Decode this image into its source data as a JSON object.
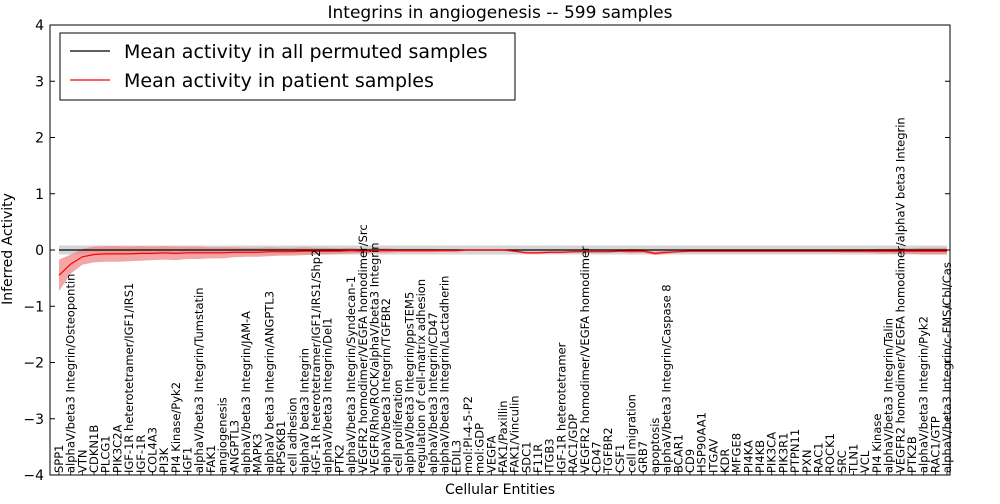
{
  "chart_data": {
    "type": "line",
    "title": "Integrins in angiogenesis -- 599 samples",
    "xlabel": "Cellular Entities",
    "ylabel": "Inferred Activity",
    "ylim": [
      -4,
      4
    ],
    "yticks": [
      -4,
      -3,
      -2,
      -1,
      0,
      1,
      2,
      3,
      4
    ],
    "legend_position": "top-left",
    "colors": {
      "permuted_line": "#000000",
      "patient_line": "#ff0000",
      "permuted_band": "#c8c8c8",
      "patient_band": "#f08080"
    },
    "categories": [
      "SPP1",
      "alphaV/beta3 Integrin/Osteopontin",
      "VTN",
      "CDKN1B",
      "PLCG1",
      "PIK3C2A",
      "IGF-1R heterotetramer/IGF1/IRS1",
      "IGF-1R",
      "COL4A3",
      "PI3K",
      "PI4 Kinase/Pyk2",
      "IGF1",
      "alphaV/beta3 Integrin/Tumstatin",
      "FAK1",
      "angiogenesis",
      "ANGPTL3",
      "alphaV/beta3 Integrin/JAM-A",
      "MAPK3",
      "alphaV beta3 Integrin/ANGPTL3",
      "RPS6KB1",
      "cell adhesion",
      "alphaV beta3 Integrin",
      "IGF-1R heterotetramer/IGF1/IRS1/Shp2",
      "alphaV/beta3 Integrin/Del1",
      "PTK2",
      "alphaV/beta3 Integrin/Syndecan-1",
      "VEGFR2 homodimer/VEGFA homodimer/Src",
      "VEGFR/Rho/ROCK/alphaV/beta3 Integrin",
      "alphaV/beta3 Integrin/TGFBR2",
      "cell proliferation",
      "alphaV/beta3 Integrin/ppsTEM5",
      "regulation of cell-matrix adhesion",
      "alphaV/beta3 Integrin/CD47",
      "alphaV/beta3 Integrin/Lactadherin",
      "EDIL3",
      "mol:PI-4-5-P2",
      "mol:GDP",
      "VEGFA",
      "FAK1/Paxillin",
      "FAK1/Vinculin",
      "SDC1",
      "F11R",
      "ITGB3",
      "IGF-1R heterotetramer",
      "RAC1/GDP",
      "VEGFR2 homodimer/VEGFA homodimer",
      "CD47",
      "TGFBR2",
      "CSF1",
      "cell migration",
      "GRB7",
      "apoptosis",
      "alphaV/beta3 Integrin/Caspase 8",
      "BCAR1",
      "CD9",
      "HSP90AA1",
      "ITGAV",
      "KDR",
      "MFGE8",
      "PI4KA",
      "PI4KB",
      "PIK3CA",
      "PIK3R1",
      "PTPN11",
      "PXN",
      "RAC1",
      "ROCK1",
      "SRC",
      "TLN1",
      "VCL",
      "PI4 Kinase",
      "alphaV/beta3 Integrin/Talin",
      "VEGFR2 homodimer/VEGFA homodimer/alphaV beta3 Integrin",
      "PTK2B",
      "alphaV/beta3 Integrin/Pyk2",
      "RAC1/GTP",
      "alphaV/beta3 Integrin/c-FMS/Cbl/Cas"
    ],
    "series": [
      {
        "name": "Mean activity in all permuted samples",
        "values": [
          0.0,
          0.0,
          0.0,
          0.0,
          0.0,
          0.0,
          0.0,
          0.0,
          0.0,
          0.0,
          0.0,
          0.0,
          0.0,
          0.0,
          0.0,
          0.0,
          0.0,
          0.0,
          0.0,
          0.0,
          0.0,
          0.0,
          0.0,
          0.0,
          0.0,
          0.0,
          0.0,
          0.0,
          0.0,
          0.0,
          0.0,
          0.0,
          0.0,
          0.0,
          0.0,
          0.0,
          0.0,
          0.0,
          0.0,
          0.0,
          0.0,
          0.0,
          0.0,
          0.0,
          0.0,
          0.0,
          0.0,
          0.0,
          0.0,
          0.0,
          0.0,
          0.0,
          0.0,
          0.0,
          0.0,
          0.0,
          0.0,
          0.0,
          0.0,
          0.0,
          0.0,
          0.0,
          0.0,
          0.0,
          0.0,
          0.0,
          0.0,
          0.0,
          0.0,
          0.0,
          0.0,
          0.0,
          0.0,
          0.0,
          0.0,
          0.0,
          0.0
        ],
        "band": 0.08
      },
      {
        "name": "Mean activity in patient samples",
        "values": [
          -0.45,
          -0.25,
          -0.12,
          -0.08,
          -0.07,
          -0.07,
          -0.07,
          -0.06,
          -0.06,
          -0.05,
          -0.06,
          -0.05,
          -0.05,
          -0.05,
          -0.05,
          -0.04,
          -0.04,
          -0.04,
          -0.03,
          -0.03,
          -0.03,
          -0.02,
          -0.02,
          -0.02,
          -0.02,
          -0.01,
          -0.02,
          -0.01,
          -0.01,
          -0.01,
          -0.01,
          -0.01,
          -0.01,
          -0.01,
          -0.01,
          0.0,
          0.0,
          0.0,
          0.0,
          -0.02,
          -0.05,
          -0.05,
          -0.04,
          -0.04,
          -0.03,
          -0.03,
          -0.03,
          -0.03,
          -0.02,
          -0.02,
          -0.02,
          -0.06,
          -0.04,
          -0.03,
          -0.02,
          -0.02,
          -0.02,
          -0.02,
          -0.02,
          -0.02,
          -0.02,
          -0.02,
          -0.02,
          -0.02,
          -0.02,
          -0.02,
          -0.02,
          -0.02,
          -0.02,
          -0.02,
          -0.02,
          -0.02,
          -0.02,
          -0.02,
          -0.02,
          -0.02,
          -0.02
        ],
        "band_values": [
          0.28,
          0.17,
          0.14,
          0.14,
          0.14,
          0.14,
          0.13,
          0.13,
          0.12,
          0.12,
          0.12,
          0.11,
          0.11,
          0.1,
          0.1,
          0.09,
          0.08,
          0.08,
          0.08,
          0.07,
          0.07,
          0.07,
          0.06,
          0.06,
          0.05,
          0.05,
          0.04,
          0.04,
          0.04,
          0.03,
          0.03,
          0.03,
          0.03,
          0.02,
          0.02,
          0.01,
          0.01,
          0.01,
          0.01,
          0.02,
          0.02,
          0.02,
          0.02,
          0.02,
          0.02,
          0.02,
          0.02,
          0.02,
          0.02,
          0.04,
          0.03,
          0.03,
          0.03,
          0.02,
          0.02,
          0.02,
          0.02,
          0.02,
          0.02,
          0.02,
          0.02,
          0.02,
          0.02,
          0.02,
          0.02,
          0.02,
          0.02,
          0.03,
          0.03,
          0.03,
          0.04,
          0.04,
          0.05,
          0.05,
          0.06,
          0.06,
          0.06
        ]
      }
    ]
  }
}
